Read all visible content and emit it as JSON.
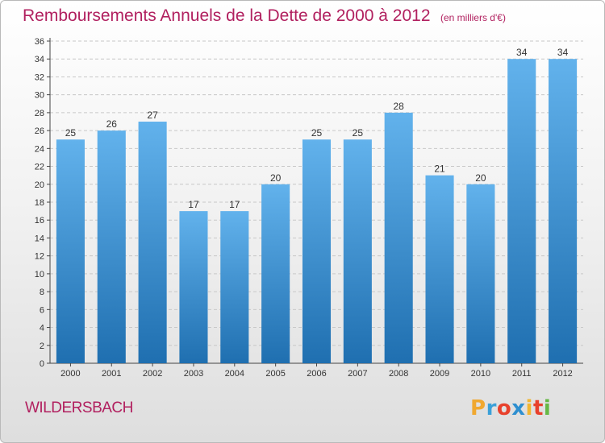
{
  "title": "Remboursements Annuels de la Dette de 2000 à 2012",
  "subtitle": "(en milliers d'€)",
  "commune": "WILDERSBACH",
  "logo": {
    "letters": [
      "P",
      "r",
      "o",
      "x",
      "i",
      "t",
      "i"
    ],
    "colors": [
      "#f0a830",
      "#3aa0d8",
      "#e8412c",
      "#2e8fd0",
      "#f2b632",
      "#e8412c",
      "#66b845"
    ]
  },
  "colors": {
    "bar_top": "#62b2ec",
    "bar_bottom": "#1f6fb0",
    "title": "#b1205f",
    "axis": "#444444",
    "grid": "#c8c8c8"
  },
  "chart_data": {
    "type": "bar",
    "categories": [
      "2000",
      "2001",
      "2002",
      "2003",
      "2004",
      "2005",
      "2006",
      "2007",
      "2008",
      "2009",
      "2010",
      "2011",
      "2012"
    ],
    "values": [
      25,
      26,
      27,
      17,
      17,
      20,
      25,
      25,
      28,
      21,
      20,
      34,
      34
    ],
    "ylim": [
      0,
      36
    ],
    "yticks": [
      0,
      2,
      4,
      6,
      8,
      10,
      12,
      14,
      16,
      18,
      20,
      22,
      24,
      26,
      28,
      30,
      32,
      34,
      36
    ],
    "grid": true,
    "data_labels": true
  }
}
